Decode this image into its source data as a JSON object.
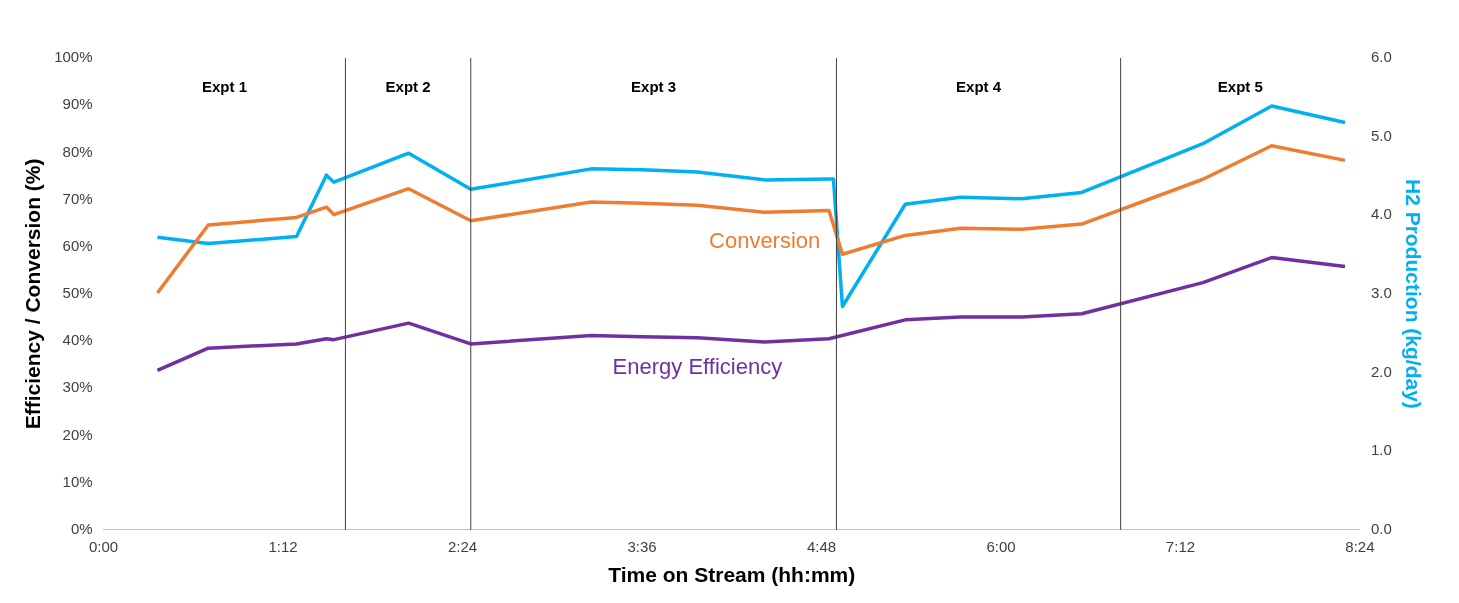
{
  "chart_data": {
    "type": "line",
    "xlabel": "Time on Stream (hh:mm)",
    "ylabel": "Efficiency / Conversion (%)",
    "y2label": "H2 Production (kg/day)",
    "xlim": [
      0,
      8.4
    ],
    "xticks": [
      {
        "value": 0,
        "label": "0:00"
      },
      {
        "value": 1.2,
        "label": "1:12"
      },
      {
        "value": 2.4,
        "label": "2:24"
      },
      {
        "value": 3.6,
        "label": "3:36"
      },
      {
        "value": 4.8,
        "label": "4:48"
      },
      {
        "value": 6,
        "label": "6:00"
      },
      {
        "value": 7.2,
        "label": "7:12"
      },
      {
        "value": 8.4,
        "label": "8:24"
      }
    ],
    "ylim": [
      0,
      100
    ],
    "yticks": [
      {
        "value": 0,
        "label": "0%"
      },
      {
        "value": 10,
        "label": "10%"
      },
      {
        "value": 20,
        "label": "20%"
      },
      {
        "value": 30,
        "label": "30%"
      },
      {
        "value": 40,
        "label": "40%"
      },
      {
        "value": 50,
        "label": "50%"
      },
      {
        "value": 60,
        "label": "60%"
      },
      {
        "value": 70,
        "label": "70%"
      },
      {
        "value": 80,
        "label": "80%"
      },
      {
        "value": 90,
        "label": "90%"
      },
      {
        "value": 100,
        "label": "100%"
      }
    ],
    "y2lim": [
      0,
      6
    ],
    "y2ticks": [
      {
        "value": 0,
        "label": "0.0"
      },
      {
        "value": 1,
        "label": "1.0"
      },
      {
        "value": 2,
        "label": "2.0"
      },
      {
        "value": 3,
        "label": "3.0"
      },
      {
        "value": 4,
        "label": "4.0"
      },
      {
        "value": 5,
        "label": "5.0"
      },
      {
        "value": 6,
        "label": "6.0"
      }
    ],
    "grid": false,
    "legend": false,
    "marker": "none",
    "line_style": "solid",
    "ref_lines": [
      {
        "axis": "x",
        "value": 1.617
      },
      {
        "axis": "x",
        "value": 2.455
      },
      {
        "axis": "x",
        "value": 4.9
      },
      {
        "axis": "x",
        "value": 6.8
      }
    ],
    "annotations": [
      "Expt 1",
      "Expt 2",
      "Expt 3",
      "Expt 4",
      "Expt 5"
    ],
    "series": [
      {
        "name": "Conversion",
        "color": "#ed7d31",
        "x": [
          0.36,
          0.7,
          1.29,
          1.49,
          1.54,
          2.04,
          2.455,
          3.26,
          3.6,
          3.97,
          4.42,
          4.85,
          4.94,
          5.36,
          5.73,
          6.14,
          6.54,
          7.35,
          7.81,
          8.3
        ],
        "values": [
          50.2,
          64.6,
          66.2,
          68.4,
          66.8,
          72.3,
          65.5,
          69.5,
          69.2,
          68.8,
          67.3,
          67.7,
          58.4,
          62.4,
          63.9,
          63.7,
          64.8,
          74.3,
          81.4,
          78.3
        ]
      },
      {
        "name": "Energy Efficiency",
        "color": "#7030a0",
        "x": [
          0.36,
          0.7,
          1.29,
          1.49,
          1.54,
          2.04,
          2.455,
          3.26,
          3.6,
          3.97,
          4.42,
          4.85,
          5.36,
          5.73,
          6.14,
          6.54,
          7.35,
          7.81,
          8.3
        ],
        "values": [
          33.8,
          38.5,
          39.4,
          40.5,
          40.3,
          43.8,
          39.4,
          41.2,
          40.9,
          40.7,
          39.8,
          40.5,
          44.5,
          45.1,
          45.1,
          45.8,
          52.4,
          57.7,
          55.8
        ]
      },
      {
        "color": "#00b0f0",
        "axis": "y2",
        "x": [
          0.36,
          0.7,
          1.29,
          1.49,
          1.54,
          2.04,
          2.455,
          3.26,
          3.6,
          3.97,
          4.42,
          4.85,
          4.88,
          4.94,
          5.36,
          5.73,
          6.14,
          6.54,
          7.35,
          7.81,
          8.3
        ],
        "values": [
          3.72,
          3.64,
          3.73,
          4.51,
          4.42,
          4.79,
          4.33,
          4.59,
          4.58,
          4.55,
          4.45,
          4.46,
          4.46,
          2.84,
          4.14,
          4.23,
          4.21,
          4.29,
          4.91,
          5.39,
          5.18
        ]
      }
    ]
  }
}
